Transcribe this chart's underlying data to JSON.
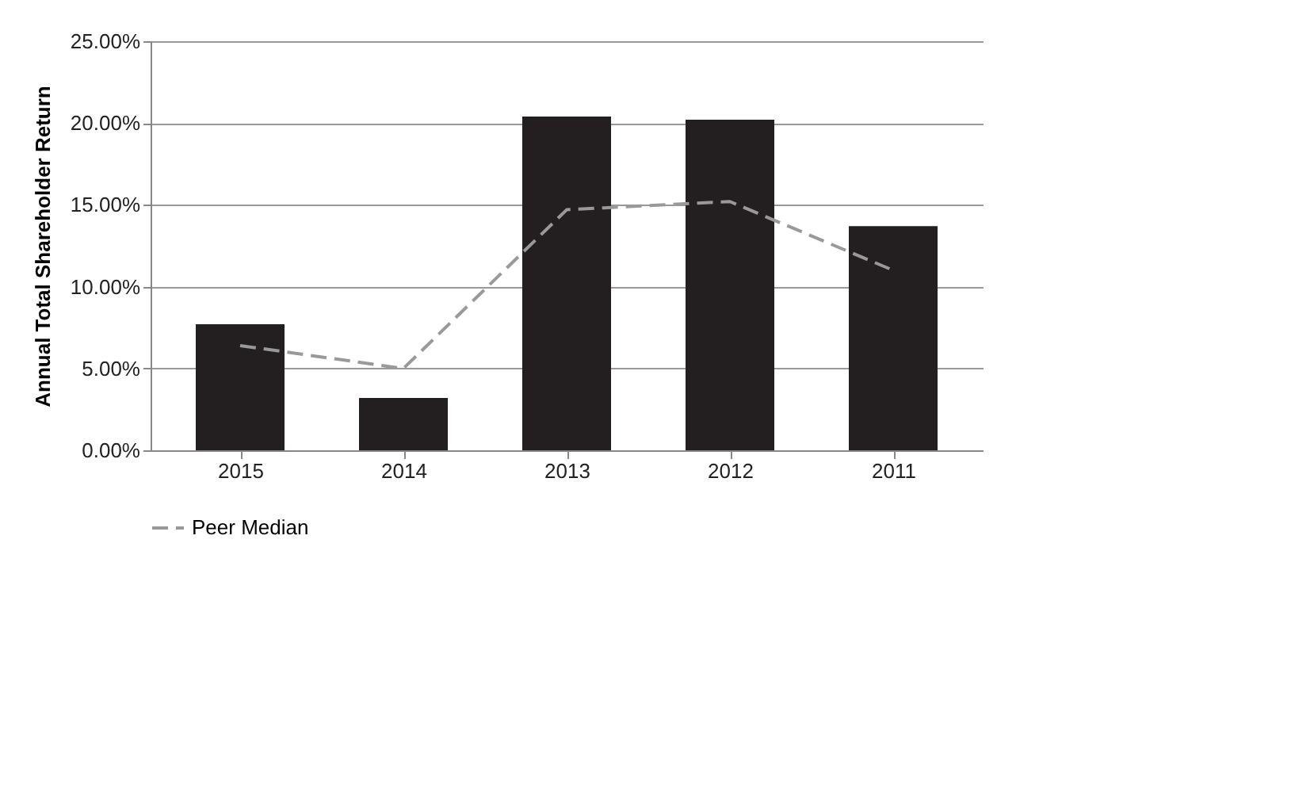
{
  "chart_data": {
    "type": "bar",
    "ylabel": "Annual Total Shareholder Return",
    "categories": [
      "2015",
      "2014",
      "2013",
      "2012",
      "2011"
    ],
    "series": [
      {
        "color": "#231f20",
        "values": [
          7.7,
          3.2,
          20.4,
          20.2,
          13.7
        ]
      },
      {
        "type": "line",
        "name": "Peer Median",
        "color": "#999999",
        "line_style": "dashed",
        "values": [
          6.4,
          5.0,
          14.7,
          15.2,
          11.0
        ]
      }
    ],
    "ylim": [
      0,
      25
    ],
    "yticks": [
      {
        "value": 0,
        "label": "0.00%"
      },
      {
        "value": 5,
        "label": "5.00%"
      },
      {
        "value": 10,
        "label": "10.00%"
      },
      {
        "value": 15,
        "label": "15.00%"
      },
      {
        "value": 20,
        "label": "20.00%"
      },
      {
        "value": 25,
        "label": "25.00%"
      }
    ],
    "grid": "y",
    "legend": "bottom",
    "marker": "none"
  }
}
